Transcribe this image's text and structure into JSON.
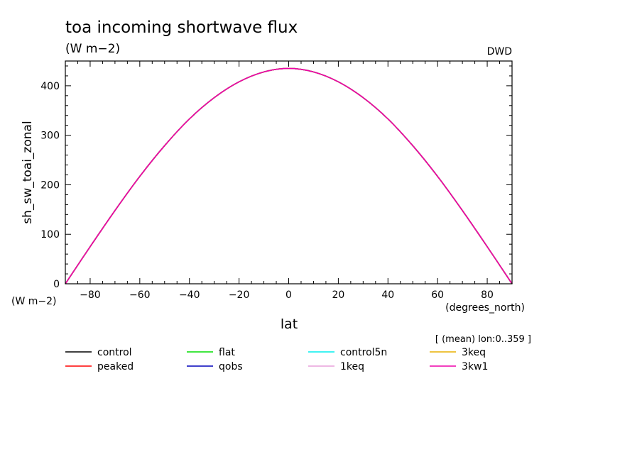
{
  "chart_data": {
    "type": "line",
    "title": "toa incoming shortwave flux",
    "subtitle": "(W m−2)",
    "source": "DWD",
    "xlabel": "lat",
    "xunits": "(degrees_north)",
    "ylabel": "sh_sw_toai_zonal",
    "yunits": "(W m−2)",
    "annotation": "[ (mean) lon:0..359 ]",
    "xlim": [
      -90,
      90
    ],
    "ylim": [
      0,
      450
    ],
    "xticks": [
      -80,
      -60,
      -40,
      -20,
      0,
      20,
      40,
      60,
      80
    ],
    "yticks": [
      0,
      100,
      200,
      300,
      400
    ],
    "grid": false,
    "legend_position": "bottom",
    "x": [
      -90,
      -80,
      -70,
      -60,
      -50,
      -40,
      -30,
      -20,
      -10,
      0,
      10,
      20,
      30,
      40,
      50,
      60,
      70,
      80,
      90
    ],
    "series": [
      {
        "name": "control",
        "color": "#000000",
        "values": [
          0,
          75,
          148,
          217,
          279,
          333,
          376,
          408,
          428,
          435,
          428,
          408,
          376,
          333,
          279,
          217,
          148,
          75,
          0
        ]
      },
      {
        "name": "peaked",
        "color": "#ff0000",
        "values": [
          0,
          75,
          148,
          217,
          279,
          333,
          376,
          408,
          428,
          435,
          428,
          408,
          376,
          333,
          279,
          217,
          148,
          75,
          0
        ]
      },
      {
        "name": "flat",
        "color": "#00dd00",
        "values": [
          0,
          75,
          148,
          217,
          279,
          333,
          376,
          408,
          428,
          435,
          428,
          408,
          376,
          333,
          279,
          217,
          148,
          75,
          0
        ]
      },
      {
        "name": "qobs",
        "color": "#0000bb",
        "values": [
          0,
          75,
          148,
          217,
          279,
          333,
          376,
          408,
          428,
          435,
          428,
          408,
          376,
          333,
          279,
          217,
          148,
          75,
          0
        ]
      },
      {
        "name": "control5n",
        "color": "#00eeee",
        "values": [
          0,
          75,
          148,
          217,
          279,
          333,
          376,
          408,
          428,
          435,
          428,
          408,
          376,
          333,
          279,
          217,
          148,
          75,
          0
        ]
      },
      {
        "name": "1keq",
        "color": "#e8a0dc",
        "values": [
          0,
          75,
          148,
          217,
          279,
          333,
          376,
          408,
          428,
          435,
          428,
          408,
          376,
          333,
          279,
          217,
          148,
          75,
          0
        ]
      },
      {
        "name": "3keq",
        "color": "#e8b000",
        "values": [
          0,
          75,
          148,
          217,
          279,
          333,
          376,
          408,
          428,
          435,
          428,
          408,
          376,
          333,
          279,
          217,
          148,
          75,
          0
        ]
      },
      {
        "name": "3kw1",
        "color": "#ee00aa",
        "values": [
          0,
          75,
          148,
          217,
          279,
          333,
          376,
          408,
          428,
          435,
          428,
          408,
          376,
          333,
          279,
          217,
          148,
          75,
          0
        ]
      }
    ]
  }
}
